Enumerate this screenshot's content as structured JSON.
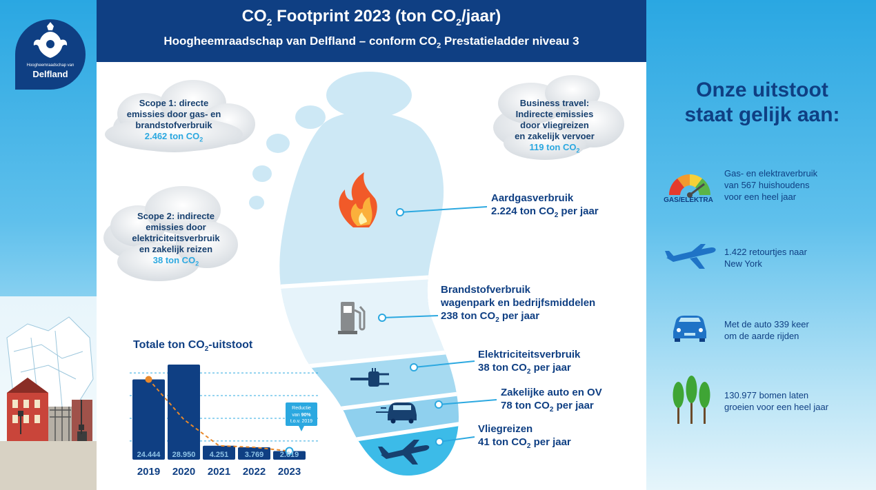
{
  "header": {
    "title_pre": "CO",
    "title_sub": "2",
    "title_mid": " Footprint 2023 (ton CO",
    "title_sub2": "2",
    "title_post": "/jaar)",
    "subtitle_pre": "Hoogheemraadschap van Delfland – conform CO",
    "subtitle_sub": "2",
    "subtitle_post": " Prestatieladder niveau 3"
  },
  "logo": {
    "small": "Hoogheemraadschap van",
    "name": "Delfland"
  },
  "clouds": {
    "scope1": {
      "lines": [
        "Scope 1: directe",
        "emissies door gas- en",
        "brandstofverbruik"
      ],
      "value": "2.462  ton CO",
      "sub": "2"
    },
    "scope2": {
      "lines": [
        "Scope 2:  indirecte",
        "emissies door",
        "elektriciteitsverbruik",
        "en zakelijk reizen"
      ],
      "value": "38 ton CO",
      "sub": "2"
    },
    "travel": {
      "lines": [
        "Business travel:",
        "Indirecte emissies",
        "door vliegreizen",
        "en zakelijk vervoer"
      ],
      "value": "119 ton CO",
      "sub": "2"
    }
  },
  "footprint": {
    "gas": {
      "title": "Aardgasverbruik",
      "value": "2.224 ton CO",
      "sub": "2",
      "unit": " per jaar"
    },
    "fuel": {
      "title1": "Brandstofverbruik",
      "title2": "wagenpark en bedrijfsmiddelen",
      "value": "238 ton CO",
      "sub": "2",
      "unit": " per jaar"
    },
    "elec": {
      "title": "Elektriciteitsverbruik",
      "value": "38 ton CO",
      "sub": "2",
      "unit": " per jaar"
    },
    "car": {
      "title": "Zakelijke auto en OV",
      "value": "78 ton CO",
      "sub": "2",
      "unit": " per jaar"
    },
    "flight": {
      "title": "Vliegreizen",
      "value": "41 ton CO",
      "sub": "2",
      "unit": " per jaar"
    }
  },
  "chart_data": {
    "type": "bar",
    "title": "Totale ton CO2-uitstoot",
    "title_pre": "Totale ton CO",
    "title_sub": "2",
    "title_post": "-uitstoot",
    "categories": [
      "2019",
      "2020",
      "2021",
      "2022",
      "2023"
    ],
    "values": [
      24444,
      28950,
      4251,
      3769,
      2619
    ],
    "value_labels": [
      "24.444",
      "28.950",
      "4.251",
      "3.769",
      "2.619"
    ],
    "ylim": [
      0,
      30000
    ],
    "grid": true,
    "trend_line": true,
    "annotation": {
      "line1": "Reductie",
      "line2_pre": "van ",
      "line2_bold": "90%",
      "line3": "t.o.v. 2019"
    }
  },
  "equivalents": {
    "title_line1": "Onze uitstoot",
    "title_line2": "staat gelijk aan:",
    "gauge_label": "GAS/ELEKTRA",
    "items": [
      {
        "icon": "gauge-icon",
        "lines": [
          "Gas- en elektraverbruik",
          "van 567 huishoudens",
          "voor een heel jaar"
        ]
      },
      {
        "icon": "airplane-icon",
        "lines": [
          "1.422 retourtjes naar",
          "New York"
        ]
      },
      {
        "icon": "car-icon",
        "lines": [
          "Met de auto 339 keer",
          "om de aarde rijden"
        ]
      },
      {
        "icon": "trees-icon",
        "lines": [
          "130.977 bomen laten",
          "groeien voor een heel jaar"
        ]
      }
    ]
  },
  "colors": {
    "navy": "#0f3f83",
    "accent": "#2ba8e0",
    "bar": "#0f3f83",
    "trend": "#e8882a",
    "foot_light": "#cde8f5",
    "foot_mid": "#8fd0ee",
    "foot_dark": "#3cbbe8"
  }
}
